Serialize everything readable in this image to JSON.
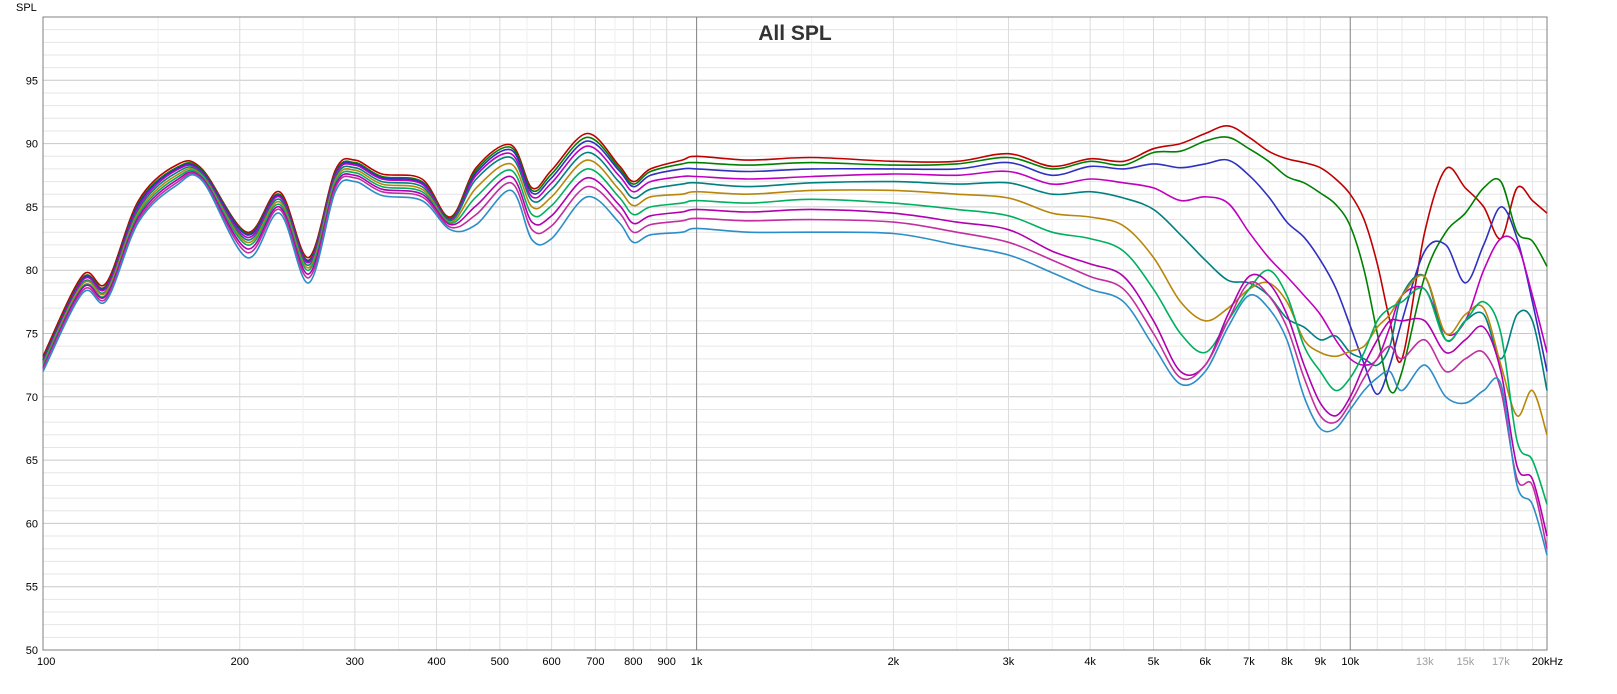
{
  "chart_data": {
    "type": "line",
    "title": "All SPL",
    "ylabel": "SPL",
    "xlabel": "",
    "x_scale": "log",
    "xlim": [
      100,
      20000
    ],
    "ylim": [
      50,
      100
    ],
    "grid": true,
    "legend": "none",
    "y_ticks": [
      {
        "value": 50,
        "label": "50"
      },
      {
        "value": 55,
        "label": "55"
      },
      {
        "value": 60,
        "label": "60"
      },
      {
        "value": 65,
        "label": "65"
      },
      {
        "value": 70,
        "label": "70"
      },
      {
        "value": 75,
        "label": "75"
      },
      {
        "value": 80,
        "label": "80"
      },
      {
        "value": 85,
        "label": "85"
      },
      {
        "value": 90,
        "label": "90"
      },
      {
        "value": 95,
        "label": "95"
      }
    ],
    "x_ticks": [
      {
        "value": 100,
        "label": "100"
      },
      {
        "value": 200,
        "label": "200"
      },
      {
        "value": 300,
        "label": "300"
      },
      {
        "value": 400,
        "label": "400"
      },
      {
        "value": 500,
        "label": "500"
      },
      {
        "value": 600,
        "label": "600"
      },
      {
        "value": 700,
        "label": "700"
      },
      {
        "value": 800,
        "label": "800"
      },
      {
        "value": 900,
        "label": "900"
      },
      {
        "value": 1000,
        "label": "1k"
      },
      {
        "value": 2000,
        "label": "2k"
      },
      {
        "value": 3000,
        "label": "3k"
      },
      {
        "value": 4000,
        "label": "4k"
      },
      {
        "value": 5000,
        "label": "5k"
      },
      {
        "value": 6000,
        "label": "6k"
      },
      {
        "value": 7000,
        "label": "7k"
      },
      {
        "value": 8000,
        "label": "8k"
      },
      {
        "value": 9000,
        "label": "9k"
      },
      {
        "value": 10000,
        "label": "10k"
      },
      {
        "value": 13000,
        "label": "13k",
        "muted": true
      },
      {
        "value": 15000,
        "label": "15k",
        "muted": true
      },
      {
        "value": 17000,
        "label": "17k",
        "muted": true
      },
      {
        "value": 20000,
        "label": "20kHz"
      }
    ],
    "x": [
      100,
      115,
      125,
      140,
      160,
      175,
      205,
      230,
      255,
      280,
      300,
      330,
      380,
      420,
      460,
      520,
      560,
      600,
      680,
      760,
      800,
      850,
      950,
      1000,
      1200,
      1500,
      2000,
      2500,
      3000,
      3500,
      4000,
      4500,
      5000,
      5500,
      6000,
      6500,
      7000,
      7500,
      8000,
      8500,
      9000,
      9500,
      10000,
      10500,
      11000,
      11500,
      12000,
      13000,
      14000,
      15000,
      16000,
      17000,
      18000,
      19000,
      20000
    ],
    "series": [
      {
        "color": "#c00000",
        "values": [
          73.2,
          79.6,
          79.0,
          85.5,
          88.3,
          88.0,
          83.0,
          86.2,
          81.0,
          87.9,
          88.7,
          87.6,
          87.2,
          84.2,
          88.1,
          89.9,
          86.5,
          87.9,
          90.8,
          88.3,
          87.0,
          88.0,
          88.7,
          89.0,
          88.7,
          88.9,
          88.6,
          88.6,
          89.2,
          88.2,
          88.8,
          88.6,
          89.6,
          90.0,
          90.8,
          91.4,
          90.5,
          89.4,
          88.8,
          88.5,
          88.1,
          87.2,
          86.0,
          84.0,
          80.5,
          76.0,
          73.0,
          83.0,
          88.0,
          86.5,
          85.0,
          82.5,
          86.5,
          85.5,
          84.5
        ]
      },
      {
        "color": "#008000",
        "values": [
          73.0,
          79.4,
          78.8,
          85.3,
          88.1,
          87.9,
          82.9,
          86.0,
          80.8,
          87.7,
          88.5,
          87.4,
          87.0,
          84.1,
          87.9,
          89.7,
          86.3,
          87.6,
          90.5,
          88.1,
          86.8,
          87.8,
          88.4,
          88.5,
          88.3,
          88.5,
          88.3,
          88.4,
          88.9,
          88.0,
          88.6,
          88.3,
          89.3,
          89.4,
          90.2,
          90.5,
          89.6,
          88.6,
          87.4,
          86.9,
          86.1,
          85.2,
          83.5,
          80.0,
          75.0,
          70.5,
          72.0,
          79.5,
          83.0,
          84.5,
          86.5,
          87.0,
          83.0,
          82.3,
          80.3
        ]
      },
      {
        "color": "#3030c0",
        "values": [
          72.9,
          79.3,
          78.7,
          85.2,
          88.0,
          87.8,
          82.8,
          85.9,
          80.7,
          87.6,
          88.4,
          87.3,
          86.9,
          84.0,
          87.7,
          89.5,
          86.1,
          87.3,
          90.2,
          87.9,
          86.6,
          87.5,
          88.0,
          88.0,
          87.8,
          88.0,
          88.0,
          88.0,
          88.5,
          87.5,
          88.2,
          88.0,
          88.4,
          88.1,
          88.4,
          88.7,
          87.5,
          85.8,
          83.8,
          82.6,
          80.8,
          78.6,
          75.6,
          72.6,
          70.2,
          72.5,
          76.0,
          81.5,
          82.0,
          79.0,
          82.0,
          85.0,
          82.5,
          77.5,
          72.0
        ]
      },
      {
        "color": "#c000c0",
        "values": [
          72.8,
          79.2,
          78.6,
          85.0,
          87.9,
          87.7,
          82.6,
          85.8,
          80.6,
          87.5,
          88.3,
          87.2,
          86.8,
          84.0,
          87.5,
          89.2,
          85.8,
          86.9,
          89.8,
          87.5,
          86.2,
          87.0,
          87.4,
          87.4,
          87.2,
          87.4,
          87.6,
          87.5,
          87.8,
          86.8,
          87.2,
          86.9,
          86.5,
          85.5,
          85.8,
          85.3,
          83.0,
          81.0,
          79.5,
          78.0,
          76.5,
          74.5,
          73.0,
          72.5,
          73.0,
          75.5,
          78.0,
          78.5,
          75.0,
          76.0,
          80.0,
          82.5,
          82.0,
          78.0,
          73.5
        ]
      },
      {
        "color": "#008080",
        "values": [
          72.7,
          79.0,
          78.4,
          84.8,
          87.7,
          87.6,
          82.4,
          85.6,
          80.4,
          87.3,
          88.1,
          87.0,
          86.6,
          83.9,
          87.2,
          88.9,
          85.5,
          86.4,
          89.3,
          87.0,
          85.7,
          86.4,
          86.8,
          86.9,
          86.6,
          86.9,
          87.0,
          86.8,
          86.9,
          86.0,
          86.2,
          85.7,
          84.8,
          82.8,
          80.8,
          79.2,
          79.0,
          78.0,
          76.2,
          75.5,
          74.5,
          74.8,
          73.5,
          73.0,
          72.5,
          74.0,
          78.0,
          79.5,
          74.5,
          76.0,
          76.5,
          73.0,
          76.5,
          76.0,
          70.5
        ]
      },
      {
        "color": "#b8860b",
        "values": [
          72.6,
          78.9,
          78.3,
          84.6,
          87.5,
          87.5,
          82.2,
          85.4,
          80.2,
          87.1,
          87.9,
          86.8,
          86.4,
          83.8,
          86.5,
          88.4,
          85.0,
          85.8,
          88.7,
          86.4,
          85.1,
          85.8,
          86.0,
          86.2,
          86.0,
          86.3,
          86.3,
          86.0,
          85.7,
          84.5,
          84.2,
          83.5,
          81.0,
          77.5,
          76.0,
          77.0,
          78.5,
          79.0,
          77.5,
          74.5,
          73.5,
          73.2,
          73.6,
          74.0,
          75.5,
          76.5,
          78.0,
          79.5,
          75.0,
          76.5,
          77.0,
          72.5,
          68.5,
          70.5,
          67.0
        ]
      },
      {
        "color": "#00b060",
        "values": [
          72.5,
          78.7,
          78.1,
          84.4,
          87.3,
          87.4,
          82.0,
          85.2,
          80.0,
          86.9,
          87.7,
          86.6,
          86.2,
          83.7,
          85.8,
          87.9,
          84.4,
          85.1,
          88.0,
          85.8,
          84.4,
          85.0,
          85.3,
          85.5,
          85.3,
          85.6,
          85.3,
          84.8,
          84.3,
          83.0,
          82.5,
          81.5,
          78.5,
          75.0,
          73.5,
          76.0,
          78.5,
          80.0,
          78.0,
          74.0,
          72.0,
          70.5,
          71.5,
          73.5,
          76.0,
          77.0,
          77.5,
          78.5,
          74.5,
          76.0,
          77.5,
          75.0,
          66.5,
          65.0,
          61.5
        ]
      },
      {
        "color": "#b000b0",
        "values": [
          72.3,
          78.6,
          78.0,
          84.2,
          87.1,
          87.3,
          81.7,
          85.0,
          79.7,
          86.7,
          87.5,
          86.4,
          86.0,
          83.6,
          85.1,
          87.4,
          83.8,
          84.3,
          87.3,
          85.2,
          83.7,
          84.3,
          84.6,
          84.8,
          84.6,
          84.8,
          84.5,
          83.8,
          83.2,
          81.5,
          80.5,
          79.5,
          76.0,
          72.0,
          72.5,
          76.5,
          79.5,
          79.0,
          76.5,
          72.5,
          69.5,
          68.5,
          70.0,
          72.5,
          74.5,
          76.0,
          76.0,
          76.0,
          73.5,
          74.5,
          75.5,
          72.0,
          64.5,
          63.5,
          59.0
        ]
      },
      {
        "color": "#c030a0",
        "values": [
          72.2,
          78.4,
          77.8,
          84.0,
          86.9,
          87.2,
          81.4,
          84.8,
          79.4,
          86.5,
          87.3,
          86.2,
          85.8,
          83.4,
          84.4,
          86.9,
          83.2,
          83.5,
          86.6,
          84.6,
          83.0,
          83.6,
          83.9,
          84.1,
          83.9,
          84.0,
          83.8,
          83.0,
          82.2,
          80.8,
          79.5,
          78.5,
          75.0,
          71.5,
          72.5,
          76.0,
          79.0,
          78.0,
          75.5,
          71.5,
          68.5,
          68.0,
          69.5,
          71.5,
          73.0,
          74.0,
          73.0,
          74.5,
          72.0,
          73.0,
          73.5,
          70.5,
          63.5,
          63.0,
          58.0
        ]
      },
      {
        "color": "#2c8ec8",
        "values": [
          72.0,
          78.2,
          77.6,
          83.8,
          86.7,
          87.1,
          81.0,
          84.5,
          79.0,
          86.2,
          87.0,
          85.9,
          85.5,
          83.2,
          83.6,
          86.3,
          82.4,
          82.5,
          85.8,
          83.8,
          82.2,
          82.8,
          83.0,
          83.3,
          83.0,
          83.0,
          82.9,
          82.0,
          81.2,
          79.8,
          78.5,
          77.5,
          74.0,
          71.0,
          72.0,
          75.5,
          78.0,
          77.0,
          74.5,
          70.0,
          67.5,
          67.5,
          69.0,
          70.5,
          71.5,
          72.0,
          70.5,
          72.5,
          70.0,
          69.5,
          70.5,
          71.0,
          63.0,
          61.5,
          57.5
        ]
      }
    ]
  }
}
